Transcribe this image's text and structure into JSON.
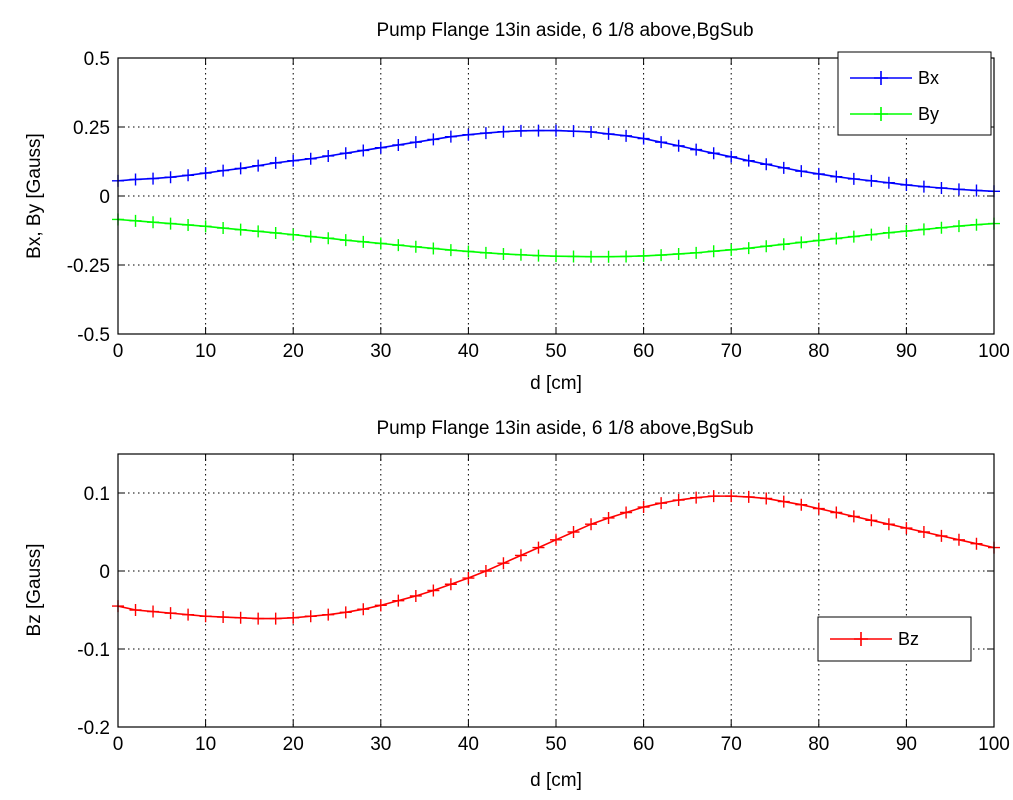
{
  "chart_data": [
    {
      "type": "line",
      "title": "Pump Flange 13in aside, 6 1/8 above,BgSub",
      "xlabel": "d [cm]",
      "ylabel": "Bx, By [Gauss]",
      "xlim": [
        0,
        100
      ],
      "ylim": [
        -0.5,
        0.5
      ],
      "xticks": [
        0,
        10,
        20,
        30,
        40,
        50,
        60,
        70,
        80,
        90,
        100
      ],
      "xtick_labels": [
        "0",
        "10",
        "20",
        "30",
        "40",
        "50",
        "60",
        "70",
        "80",
        "90",
        "100"
      ],
      "yticks": [
        -0.5,
        -0.25,
        0,
        0.25,
        0.5
      ],
      "ytick_labels": [
        "-0.5",
        "-0.25",
        "0",
        "0.25",
        "0.5"
      ],
      "grid": true,
      "legend_position": "top-right",
      "marker": "+",
      "x": [
        0,
        2,
        4,
        6,
        8,
        10,
        12,
        14,
        16,
        18,
        20,
        22,
        24,
        26,
        28,
        30,
        32,
        34,
        36,
        38,
        40,
        42,
        44,
        46,
        48,
        50,
        52,
        54,
        56,
        58,
        60,
        62,
        64,
        66,
        68,
        70,
        72,
        74,
        76,
        78,
        80,
        82,
        84,
        86,
        88,
        90,
        92,
        94,
        96,
        98,
        100
      ],
      "series": [
        {
          "name": "Bx",
          "color": "#0000ff",
          "values": [
            0.055,
            0.06,
            0.063,
            0.068,
            0.075,
            0.083,
            0.092,
            0.1,
            0.11,
            0.12,
            0.128,
            0.135,
            0.145,
            0.155,
            0.165,
            0.175,
            0.185,
            0.195,
            0.205,
            0.215,
            0.222,
            0.228,
            0.233,
            0.236,
            0.237,
            0.237,
            0.235,
            0.232,
            0.225,
            0.218,
            0.208,
            0.195,
            0.182,
            0.168,
            0.155,
            0.142,
            0.128,
            0.115,
            0.102,
            0.09,
            0.08,
            0.07,
            0.062,
            0.055,
            0.048,
            0.04,
            0.034,
            0.029,
            0.024,
            0.02,
            0.017
          ]
        },
        {
          "name": "By",
          "color": "#00ff00",
          "values": [
            -0.085,
            -0.09,
            -0.095,
            -0.1,
            -0.105,
            -0.11,
            -0.116,
            -0.122,
            -0.128,
            -0.134,
            -0.14,
            -0.147,
            -0.153,
            -0.16,
            -0.166,
            -0.172,
            -0.178,
            -0.184,
            -0.19,
            -0.196,
            -0.201,
            -0.206,
            -0.21,
            -0.213,
            -0.216,
            -0.218,
            -0.219,
            -0.22,
            -0.22,
            -0.219,
            -0.217,
            -0.214,
            -0.21,
            -0.206,
            -0.2,
            -0.195,
            -0.189,
            -0.182,
            -0.175,
            -0.168,
            -0.161,
            -0.154,
            -0.147,
            -0.14,
            -0.133,
            -0.127,
            -0.121,
            -0.115,
            -0.109,
            -0.104,
            -0.1
          ]
        }
      ]
    },
    {
      "type": "line",
      "title": "Pump Flange 13in aside, 6 1/8 above,BgSub",
      "xlabel": "d [cm]",
      "ylabel": "Bz [Gauss]",
      "xlim": [
        0,
        100
      ],
      "ylim": [
        -0.2,
        0.15
      ],
      "xticks": [
        0,
        10,
        20,
        30,
        40,
        50,
        60,
        70,
        80,
        90,
        100
      ],
      "xtick_labels": [
        "0",
        "10",
        "20",
        "30",
        "40",
        "50",
        "60",
        "70",
        "80",
        "90",
        "100"
      ],
      "yticks": [
        -0.2,
        -0.1,
        0,
        0.1
      ],
      "ytick_labels": [
        "-0.2",
        "-0.1",
        "0",
        "0.1"
      ],
      "grid": true,
      "legend_position": "right",
      "marker": "+",
      "x": [
        0,
        2,
        4,
        6,
        8,
        10,
        12,
        14,
        16,
        18,
        20,
        22,
        24,
        26,
        28,
        30,
        32,
        34,
        36,
        38,
        40,
        42,
        44,
        46,
        48,
        50,
        52,
        54,
        56,
        58,
        60,
        62,
        64,
        66,
        68,
        70,
        72,
        74,
        76,
        78,
        80,
        82,
        84,
        86,
        88,
        90,
        92,
        94,
        96,
        98,
        100
      ],
      "series": [
        {
          "name": "Bz",
          "color": "#ff0000",
          "values": [
            -0.045,
            -0.05,
            -0.052,
            -0.054,
            -0.056,
            -0.058,
            -0.059,
            -0.06,
            -0.061,
            -0.061,
            -0.06,
            -0.058,
            -0.056,
            -0.053,
            -0.049,
            -0.044,
            -0.038,
            -0.032,
            -0.025,
            -0.017,
            -0.009,
            0.0,
            0.01,
            0.02,
            0.03,
            0.04,
            0.05,
            0.06,
            0.068,
            0.075,
            0.082,
            0.087,
            0.091,
            0.094,
            0.096,
            0.096,
            0.095,
            0.093,
            0.089,
            0.085,
            0.08,
            0.075,
            0.07,
            0.065,
            0.06,
            0.055,
            0.05,
            0.045,
            0.04,
            0.035,
            0.03
          ]
        }
      ]
    }
  ]
}
